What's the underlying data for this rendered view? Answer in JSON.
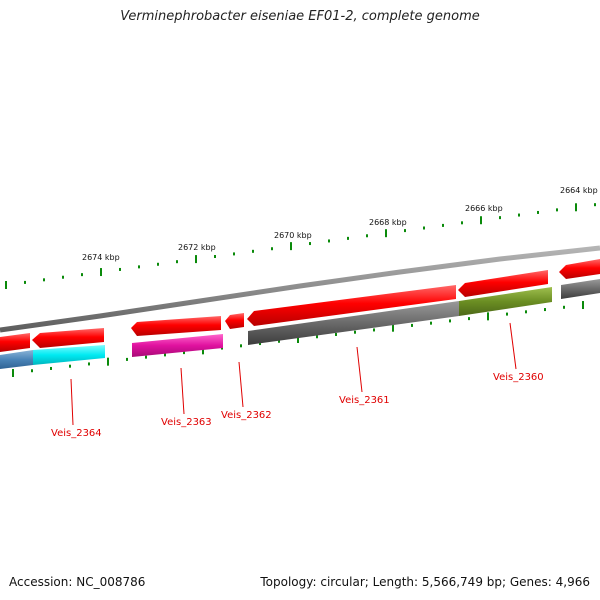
{
  "title": "Verminephrobacter eiseniae EF01-2, complete genome",
  "footer": {
    "accession": "Accession: NC_008786",
    "summary": "Topology: circular; Length: 5,566,749 bp; Genes: 4,966"
  },
  "kbp_labels": [
    "2674 kbp",
    "2672 kbp",
    "2670 kbp",
    "2668 kbp",
    "2666 kbp",
    "2664 kbp"
  ],
  "genes": [
    {
      "label": "Veis_2364",
      "cog_color": "#00e5ee"
    },
    {
      "label": "Veis_2363",
      "cog_color": "#e0119f"
    },
    {
      "label": "Veis_2362",
      "cog_color": "none"
    },
    {
      "label": "Veis_2361",
      "cog_color": "#606060"
    },
    {
      "label": "Veis_2360",
      "cog_color": "#6b8e23"
    }
  ],
  "colors": {
    "cds": "#ff0000",
    "backbone": "#8c8c8c",
    "ticks": "#0a8a0a",
    "label": "#e00000"
  }
}
